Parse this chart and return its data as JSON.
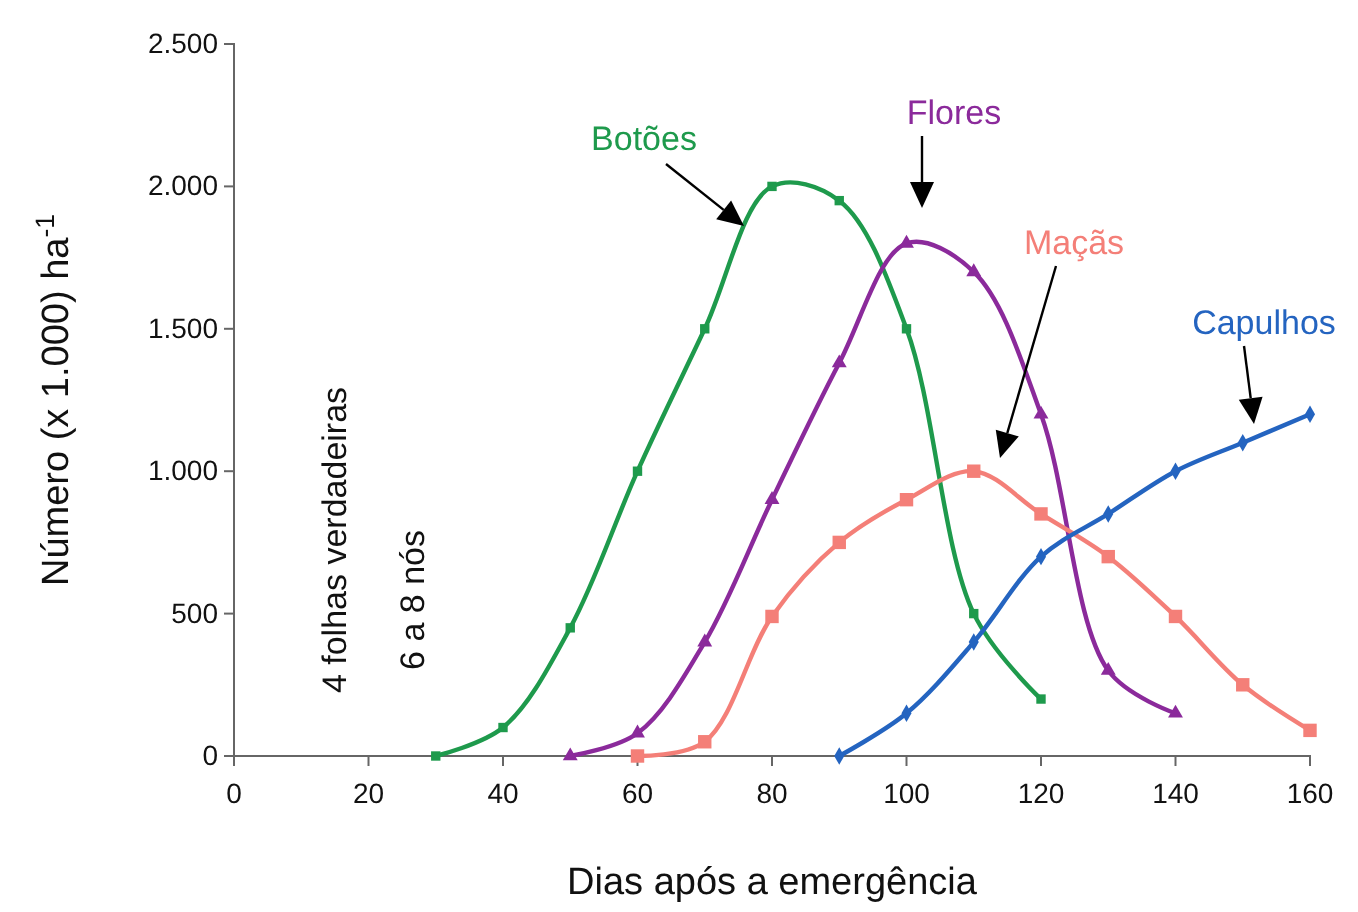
{
  "chart_data": {
    "type": "line",
    "xlabel": "Dias após a emergência",
    "ylabel": "Número (x 1.000) ha$^{-1}$",
    "xlim": [
      0,
      160
    ],
    "xticks": [
      0,
      20,
      40,
      60,
      80,
      100,
      120,
      140,
      160
    ],
    "ylim": [
      0,
      2500
    ],
    "yticks": [
      0,
      {
        "value": 500,
        "label": "500"
      },
      {
        "value": 1000,
        "label": "1.000"
      },
      {
        "value": 1500,
        "label": "1.500"
      },
      {
        "value": 2000,
        "label": "2.000"
      },
      {
        "value": 2500,
        "label": "2.500"
      }
    ],
    "grid": false,
    "legend": false,
    "annotations": [
      "4 folhas verdadeiras",
      "6 a 8 nós"
    ],
    "series": [
      {
        "name": "Botões",
        "color": "#1e9a4c",
        "marker": "square",
        "x": [
          30,
          40,
          50,
          60,
          70,
          80,
          90,
          100,
          110,
          120
        ],
        "values": [
          0,
          100,
          450,
          1000,
          1500,
          2000,
          1950,
          1500,
          500,
          200
        ]
      },
      {
        "name": "Flores",
        "color": "#8b2a9b",
        "marker": "triangle",
        "x": [
          50,
          60,
          70,
          80,
          90,
          100,
          110,
          120,
          130,
          140
        ],
        "values": [
          0,
          80,
          400,
          900,
          1380,
          1800,
          1700,
          1200,
          300,
          150
        ]
      },
      {
        "name": "Maçãs",
        "color": "#f47f78",
        "marker": "square",
        "x": [
          60,
          70,
          80,
          90,
          100,
          110,
          120,
          130,
          140,
          150,
          160
        ],
        "values": [
          0,
          50,
          490,
          750,
          900,
          1000,
          850,
          700,
          490,
          250,
          90
        ]
      },
      {
        "name": "Capulhos",
        "color": "#2464c0",
        "marker": "diamond",
        "x": [
          90,
          100,
          110,
          120,
          130,
          140,
          150,
          160
        ],
        "values": [
          0,
          150,
          400,
          700,
          850,
          1000,
          1100,
          1200
        ]
      }
    ]
  }
}
